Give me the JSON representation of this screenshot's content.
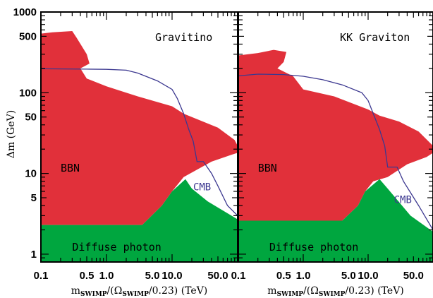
{
  "colors": {
    "bbn": "#e1303a",
    "diffuse": "#00a63f",
    "cmb": "#3c3890"
  },
  "chart_data": [
    {
      "type": "area",
      "title": "Gravitino",
      "xlabel": {
        "main": "m",
        "sub1": "SWIMP",
        "mid": "/(Ω",
        "sub2": "SWIMP",
        "end": "/0.23)  (TeV)"
      },
      "ylabel": "Δm (GeV)",
      "xscale": "log",
      "yscale": "log",
      "xlim": [
        0.1,
        100
      ],
      "ylim": [
        0.8,
        1000
      ],
      "x_tick_labels": [
        {
          "v": 0.1,
          "t": "0.1"
        },
        {
          "v": 0.5,
          "t": "0.5"
        },
        {
          "v": 1,
          "t": "1.0"
        },
        {
          "v": 5,
          "t": "5.0"
        },
        {
          "v": 10,
          "t": "10.0"
        },
        {
          "v": 50,
          "t": "50.0"
        }
      ],
      "y_tick_labels": [
        {
          "v": 1,
          "t": "1"
        },
        {
          "v": 5,
          "t": "5"
        },
        {
          "v": 10,
          "t": "10"
        },
        {
          "v": 50,
          "t": "50"
        },
        {
          "v": 100,
          "t": "100"
        },
        {
          "v": 500,
          "t": "500"
        },
        {
          "v": 1000,
          "t": "1000"
        }
      ],
      "regions": [
        {
          "label": "BBN",
          "label_at": [
            0.2,
            10.5
          ],
          "color": "bbn",
          "points": [
            [
              0.1,
              540
            ],
            [
              0.15,
              560
            ],
            [
              0.3,
              580
            ],
            [
              0.35,
              480
            ],
            [
              0.5,
              300
            ],
            [
              0.55,
              230
            ],
            [
              0.4,
              200
            ],
            [
              0.5,
              150
            ],
            [
              1.0,
              120
            ],
            [
              3.0,
              90
            ],
            [
              10.0,
              68
            ],
            [
              15.0,
              55
            ],
            [
              50,
              37
            ],
            [
              90,
              26
            ],
            [
              100,
              22
            ],
            [
              100,
              18
            ],
            [
              80,
              17
            ],
            [
              40,
              14
            ],
            [
              15,
              9
            ],
            [
              10,
              6
            ],
            [
              7,
              4
            ],
            [
              3.5,
              2.3
            ],
            [
              0.1,
              2.3
            ]
          ]
        },
        {
          "label": "Diffuse photon",
          "label_at": [
            0.3,
            1.1
          ],
          "color": "diffuse",
          "points": [
            [
              0.1,
              0.8
            ],
            [
              100,
              0.8
            ],
            [
              100,
              2.7
            ],
            [
              35,
              4.5
            ],
            [
              20,
              6.5
            ],
            [
              16,
              8.5
            ],
            [
              10,
              6
            ],
            [
              7,
              4
            ],
            [
              3.5,
              2.3
            ],
            [
              0.1,
              2.3
            ]
          ]
        }
      ],
      "cmb": {
        "label": "CMB",
        "label_at": [
          21,
          6.2
        ],
        "points": [
          [
            0.1,
            198
          ],
          [
            0.5,
            196
          ],
          [
            1,
            195
          ],
          [
            2,
            190
          ],
          [
            3,
            175
          ],
          [
            6,
            140
          ],
          [
            10,
            110
          ],
          [
            12,
            85
          ],
          [
            15,
            55
          ],
          [
            18,
            35
          ],
          [
            21,
            25
          ],
          [
            24,
            14
          ],
          [
            30,
            14
          ],
          [
            40,
            10
          ],
          [
            50,
            7
          ],
          [
            70,
            4
          ],
          [
            100,
            3
          ]
        ]
      }
    },
    {
      "type": "area",
      "title": "KK Graviton",
      "xlabel": {
        "main": "m",
        "sub1": "SWIMP",
        "mid": "/(Ω",
        "sub2": "SWIMP",
        "end": "/0.23)  (TeV)"
      },
      "xscale": "log",
      "yscale": "log",
      "xlim": [
        0.1,
        100
      ],
      "ylim": [
        0.8,
        1000
      ],
      "x_tick_labels": [
        {
          "v": 0.1,
          "t": "0.1"
        },
        {
          "v": 0.5,
          "t": "0.5"
        },
        {
          "v": 1,
          "t": "1.0"
        },
        {
          "v": 5,
          "t": "5.0"
        },
        {
          "v": 10,
          "t": "10.0"
        },
        {
          "v": 50,
          "t": "50.0"
        }
      ],
      "regions": [
        {
          "label": "BBN",
          "label_at": [
            0.2,
            10.5
          ],
          "color": "bbn",
          "points": [
            [
              0.1,
              290
            ],
            [
              0.2,
              310
            ],
            [
              0.35,
              340
            ],
            [
              0.55,
              320
            ],
            [
              0.5,
              240
            ],
            [
              0.4,
              200
            ],
            [
              0.7,
              160
            ],
            [
              1.0,
              110
            ],
            [
              3.0,
              90
            ],
            [
              10.0,
              62
            ],
            [
              15.0,
              52
            ],
            [
              30,
              44
            ],
            [
              60,
              33
            ],
            [
              100,
              22
            ],
            [
              100,
              18
            ],
            [
              80,
              16
            ],
            [
              40,
              13
            ],
            [
              20,
              9
            ],
            [
              12,
              8
            ],
            [
              9,
              6
            ],
            [
              7,
              4
            ],
            [
              4,
              2.6
            ],
            [
              0.1,
              2.6
            ]
          ]
        },
        {
          "label": "Diffuse photon",
          "label_at": [
            0.3,
            1.1
          ],
          "color": "diffuse",
          "points": [
            [
              0.1,
              0.8
            ],
            [
              100,
              0.8
            ],
            [
              100,
              1.9
            ],
            [
              45,
              3
            ],
            [
              20,
              6.5
            ],
            [
              15,
              8.5
            ],
            [
              9,
              6
            ],
            [
              7,
              4
            ],
            [
              4,
              2.6
            ],
            [
              0.1,
              2.6
            ]
          ]
        }
      ],
      "cmb": {
        "label": "CMB",
        "label_at": [
          25,
          4.3
        ],
        "points": [
          [
            0.1,
            162
          ],
          [
            0.2,
            170
          ],
          [
            0.5,
            168
          ],
          [
            1,
            160
          ],
          [
            2,
            145
          ],
          [
            4,
            125
          ],
          [
            8,
            100
          ],
          [
            10,
            80
          ],
          [
            12,
            55
          ],
          [
            15,
            35
          ],
          [
            18,
            22
          ],
          [
            20,
            12
          ],
          [
            28,
            12
          ],
          [
            35,
            8
          ],
          [
            60,
            4
          ],
          [
            100,
            2
          ]
        ]
      }
    }
  ]
}
